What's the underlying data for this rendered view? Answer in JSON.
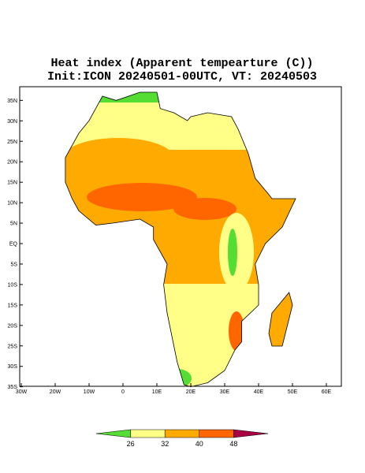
{
  "map": {
    "title": "Heat index (Apparent tempearture (C))",
    "subtitle": "Init:ICON 20240501-00UTC, VT: 20240503",
    "lon_ticks": [
      {
        "value": -30,
        "label": "30W"
      },
      {
        "value": -20,
        "label": "20W"
      },
      {
        "value": -10,
        "label": "10W"
      },
      0,
      {
        "value": 10,
        "label": "10E"
      },
      {
        "value": 20,
        "label": "20E"
      },
      {
        "value": 30,
        "label": "30E"
      },
      {
        "value": 40,
        "label": "40E"
      },
      {
        "value": 50,
        "label": "50E"
      },
      {
        "value": 60,
        "label": "60E"
      }
    ],
    "lat_ticks": [
      {
        "value": 35,
        "label": "35N"
      },
      {
        "value": 30,
        "label": "30N"
      },
      {
        "value": 25,
        "label": "25N"
      },
      {
        "value": 20,
        "label": "20N"
      },
      {
        "value": 15,
        "label": "15N"
      },
      {
        "value": 10,
        "label": "10N"
      },
      {
        "value": 5,
        "label": "5N"
      },
      {
        "value": 0,
        "label": "EQ"
      },
      {
        "value": -5,
        "label": "5S"
      },
      {
        "value": -10,
        "label": "10S"
      },
      {
        "value": -15,
        "label": "15S"
      },
      {
        "value": -20,
        "label": "20S"
      },
      {
        "value": -25,
        "label": "25S"
      },
      {
        "value": -30,
        "label": "30S"
      },
      {
        "value": -35,
        "label": "35S"
      }
    ],
    "colorbar": {
      "levels": [
        26,
        32,
        40,
        48
      ],
      "colors": [
        "#55dd33",
        "#ffff88",
        "#ffaa00",
        "#ff6600",
        "#aa0044"
      ]
    }
  }
}
